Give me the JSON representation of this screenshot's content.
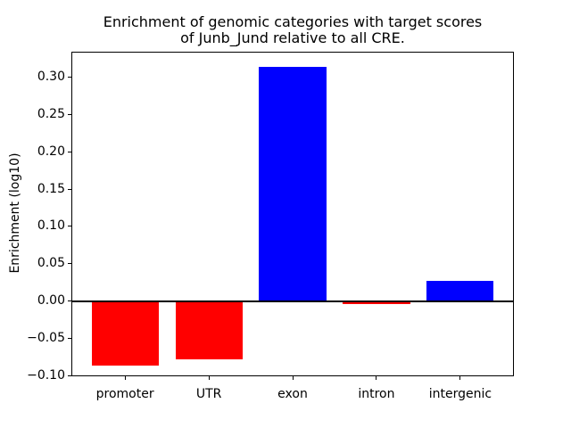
{
  "chart_data": {
    "type": "bar",
    "title": "Enrichment of genomic categories with target scores\nof Junb_Jund relative to all CRE.",
    "ylabel": "Enrichment (log10)",
    "xlabel": "",
    "categories": [
      "promoter",
      "UTR",
      "exon",
      "intron",
      "intergenic"
    ],
    "values": [
      -0.086,
      -0.078,
      0.314,
      -0.004,
      0.027
    ],
    "bar_colors": [
      "#ff0000",
      "#ff0000",
      "#0000ff",
      "#ff0000",
      "#0000ff"
    ],
    "positive_color": "#0000ff",
    "negative_color": "#ff0000",
    "ytick_values": [
      0.3,
      0.25,
      0.2,
      0.15,
      0.1,
      0.05,
      0.0,
      -0.05,
      -0.1
    ],
    "ytick_labels": [
      "0.30",
      "0.25",
      "0.20",
      "0.15",
      "0.10",
      "0.05",
      "0.00",
      "−0.05",
      "−0.10"
    ],
    "ylim": [
      -0.101,
      0.334
    ],
    "xlim": [
      -0.64,
      4.64
    ],
    "bar_width": 0.8,
    "grid": false,
    "legend": "none",
    "zero_line_color": "#000000",
    "background": "#ffffff"
  }
}
